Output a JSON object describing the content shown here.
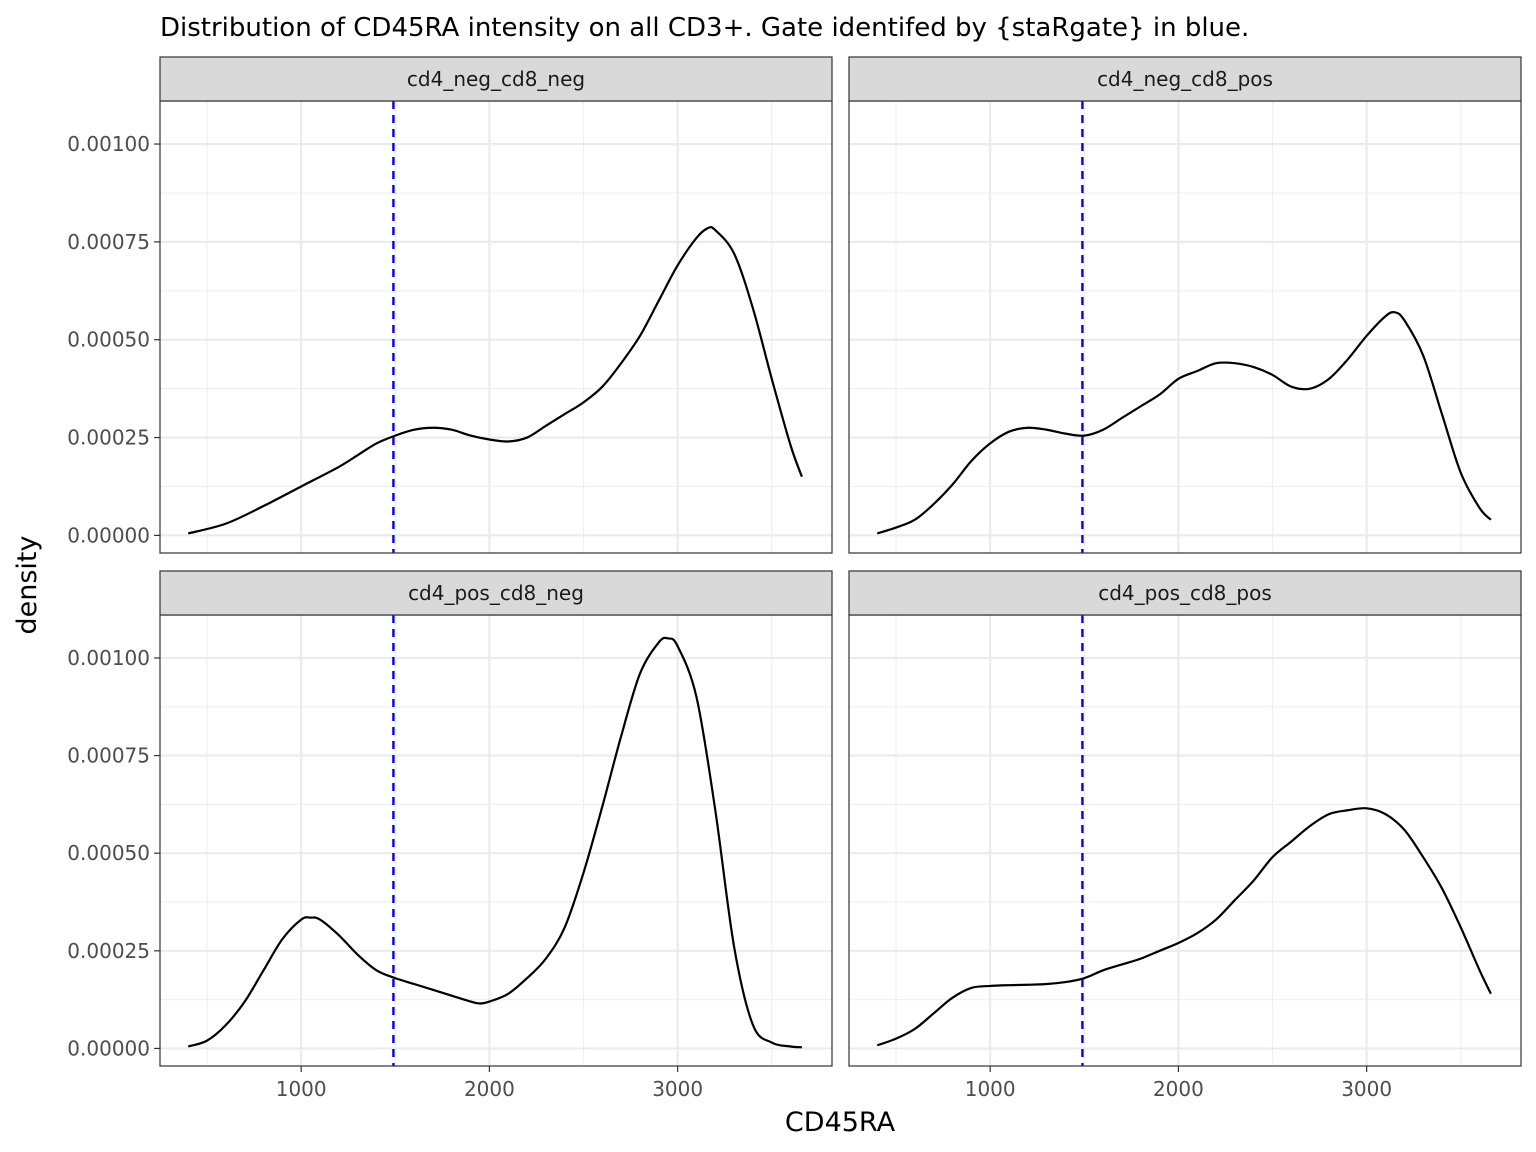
{
  "chart_data": {
    "type": "line",
    "title": "Distribution of CD45RA intensity on all CD3+. Gate identifed by {staRgate} in blue.",
    "xlabel": "CD45RA",
    "ylabel": "density",
    "xlim": [
      250,
      3820
    ],
    "ylim": [
      -4.5e-05,
      0.00111
    ],
    "x_ticks": [
      1000,
      2000,
      3000
    ],
    "x_tick_labels": [
      "1000",
      "2000",
      "3000"
    ],
    "x_minor_ticks": [
      500,
      1500,
      2500,
      3500
    ],
    "y_ticks": [
      0,
      0.00025,
      0.0005,
      0.00075,
      0.001
    ],
    "y_tick_labels": [
      "0.00000",
      "0.00025",
      "0.00050",
      "0.00075",
      "0.00100"
    ],
    "y_minor_ticks": [
      0.000125,
      0.000375,
      0.000625,
      0.000875
    ],
    "grid": true,
    "gate_color": "#0000ff",
    "line_color": "#000000",
    "strip_fill": "#d9d9d9",
    "panels": [
      {
        "label": "cd4_neg_cd8_neg",
        "gate": 1490,
        "x": [
          400,
          600,
          800,
          1000,
          1200,
          1300,
          1400,
          1500,
          1600,
          1700,
          1800,
          1900,
          2000,
          2100,
          2200,
          2300,
          2400,
          2500,
          2600,
          2700,
          2800,
          2900,
          3000,
          3100,
          3160,
          3200,
          3300,
          3400,
          3500,
          3600,
          3660
        ],
        "y": [
          5e-06,
          3e-05,
          7.5e-05,
          0.000125,
          0.000175,
          0.000205,
          0.000235,
          0.000255,
          0.00027,
          0.000275,
          0.00027,
          0.000255,
          0.000245,
          0.00024,
          0.00025,
          0.00028,
          0.00031,
          0.00034,
          0.00038,
          0.00044,
          0.00051,
          0.0006,
          0.00069,
          0.00076,
          0.000785,
          0.00078,
          0.00072,
          0.00058,
          0.0004,
          0.00023,
          0.00015
        ]
      },
      {
        "label": "cd4_neg_cd8_pos",
        "gate": 1490,
        "x": [
          400,
          500,
          600,
          700,
          800,
          900,
          1000,
          1100,
          1200,
          1300,
          1400,
          1500,
          1600,
          1700,
          1800,
          1900,
          2000,
          2100,
          2200,
          2300,
          2400,
          2500,
          2600,
          2700,
          2800,
          2900,
          3000,
          3100,
          3150,
          3200,
          3300,
          3400,
          3500,
          3600,
          3660
        ],
        "y": [
          5e-06,
          2e-05,
          4e-05,
          8e-05,
          0.00013,
          0.00019,
          0.000235,
          0.000265,
          0.000275,
          0.00027,
          0.00026,
          0.000255,
          0.00027,
          0.0003,
          0.00033,
          0.00036,
          0.0004,
          0.00042,
          0.00044,
          0.00044,
          0.00043,
          0.00041,
          0.00038,
          0.000375,
          0.0004,
          0.00045,
          0.00051,
          0.00056,
          0.00057,
          0.00055,
          0.00046,
          0.00031,
          0.00016,
          7e-05,
          4e-05
        ]
      },
      {
        "label": "cd4_pos_cd8_neg",
        "gate": 1490,
        "x": [
          400,
          500,
          600,
          700,
          800,
          900,
          1000,
          1050,
          1100,
          1200,
          1300,
          1400,
          1500,
          1600,
          1700,
          1800,
          1900,
          1950,
          2000,
          2100,
          2200,
          2300,
          2400,
          2500,
          2600,
          2700,
          2800,
          2900,
          2950,
          3000,
          3100,
          3200,
          3300,
          3400,
          3500,
          3600,
          3660
        ],
        "y": [
          5e-06,
          2e-05,
          6e-05,
          0.00012,
          0.0002,
          0.00028,
          0.00033,
          0.000335,
          0.00033,
          0.00029,
          0.00024,
          0.0002,
          0.00018,
          0.000165,
          0.00015,
          0.000135,
          0.00012,
          0.000115,
          0.00012,
          0.00014,
          0.00018,
          0.00023,
          0.00031,
          0.00045,
          0.00062,
          0.0008,
          0.00096,
          0.00104,
          0.00105,
          0.00103,
          0.0009,
          0.00061,
          0.00026,
          6e-05,
          1.5e-05,
          5e-06,
          3e-06
        ]
      },
      {
        "label": "cd4_pos_cd8_pos",
        "gate": 1490,
        "x": [
          400,
          500,
          600,
          700,
          800,
          900,
          1000,
          1100,
          1200,
          1300,
          1400,
          1500,
          1600,
          1700,
          1800,
          1900,
          2000,
          2100,
          2200,
          2300,
          2400,
          2500,
          2600,
          2700,
          2800,
          2900,
          3000,
          3100,
          3200,
          3300,
          3400,
          3500,
          3600,
          3660
        ],
        "y": [
          8e-06,
          2.5e-05,
          5e-05,
          9e-05,
          0.00013,
          0.000155,
          0.00016,
          0.000162,
          0.000163,
          0.000165,
          0.00017,
          0.00018,
          0.0002,
          0.000215,
          0.00023,
          0.00025,
          0.00027,
          0.000295,
          0.00033,
          0.00038,
          0.00043,
          0.00049,
          0.00053,
          0.00057,
          0.0006,
          0.00061,
          0.000615,
          0.0006,
          0.00056,
          0.00049,
          0.00041,
          0.00031,
          0.0002,
          0.00014
        ]
      }
    ]
  }
}
